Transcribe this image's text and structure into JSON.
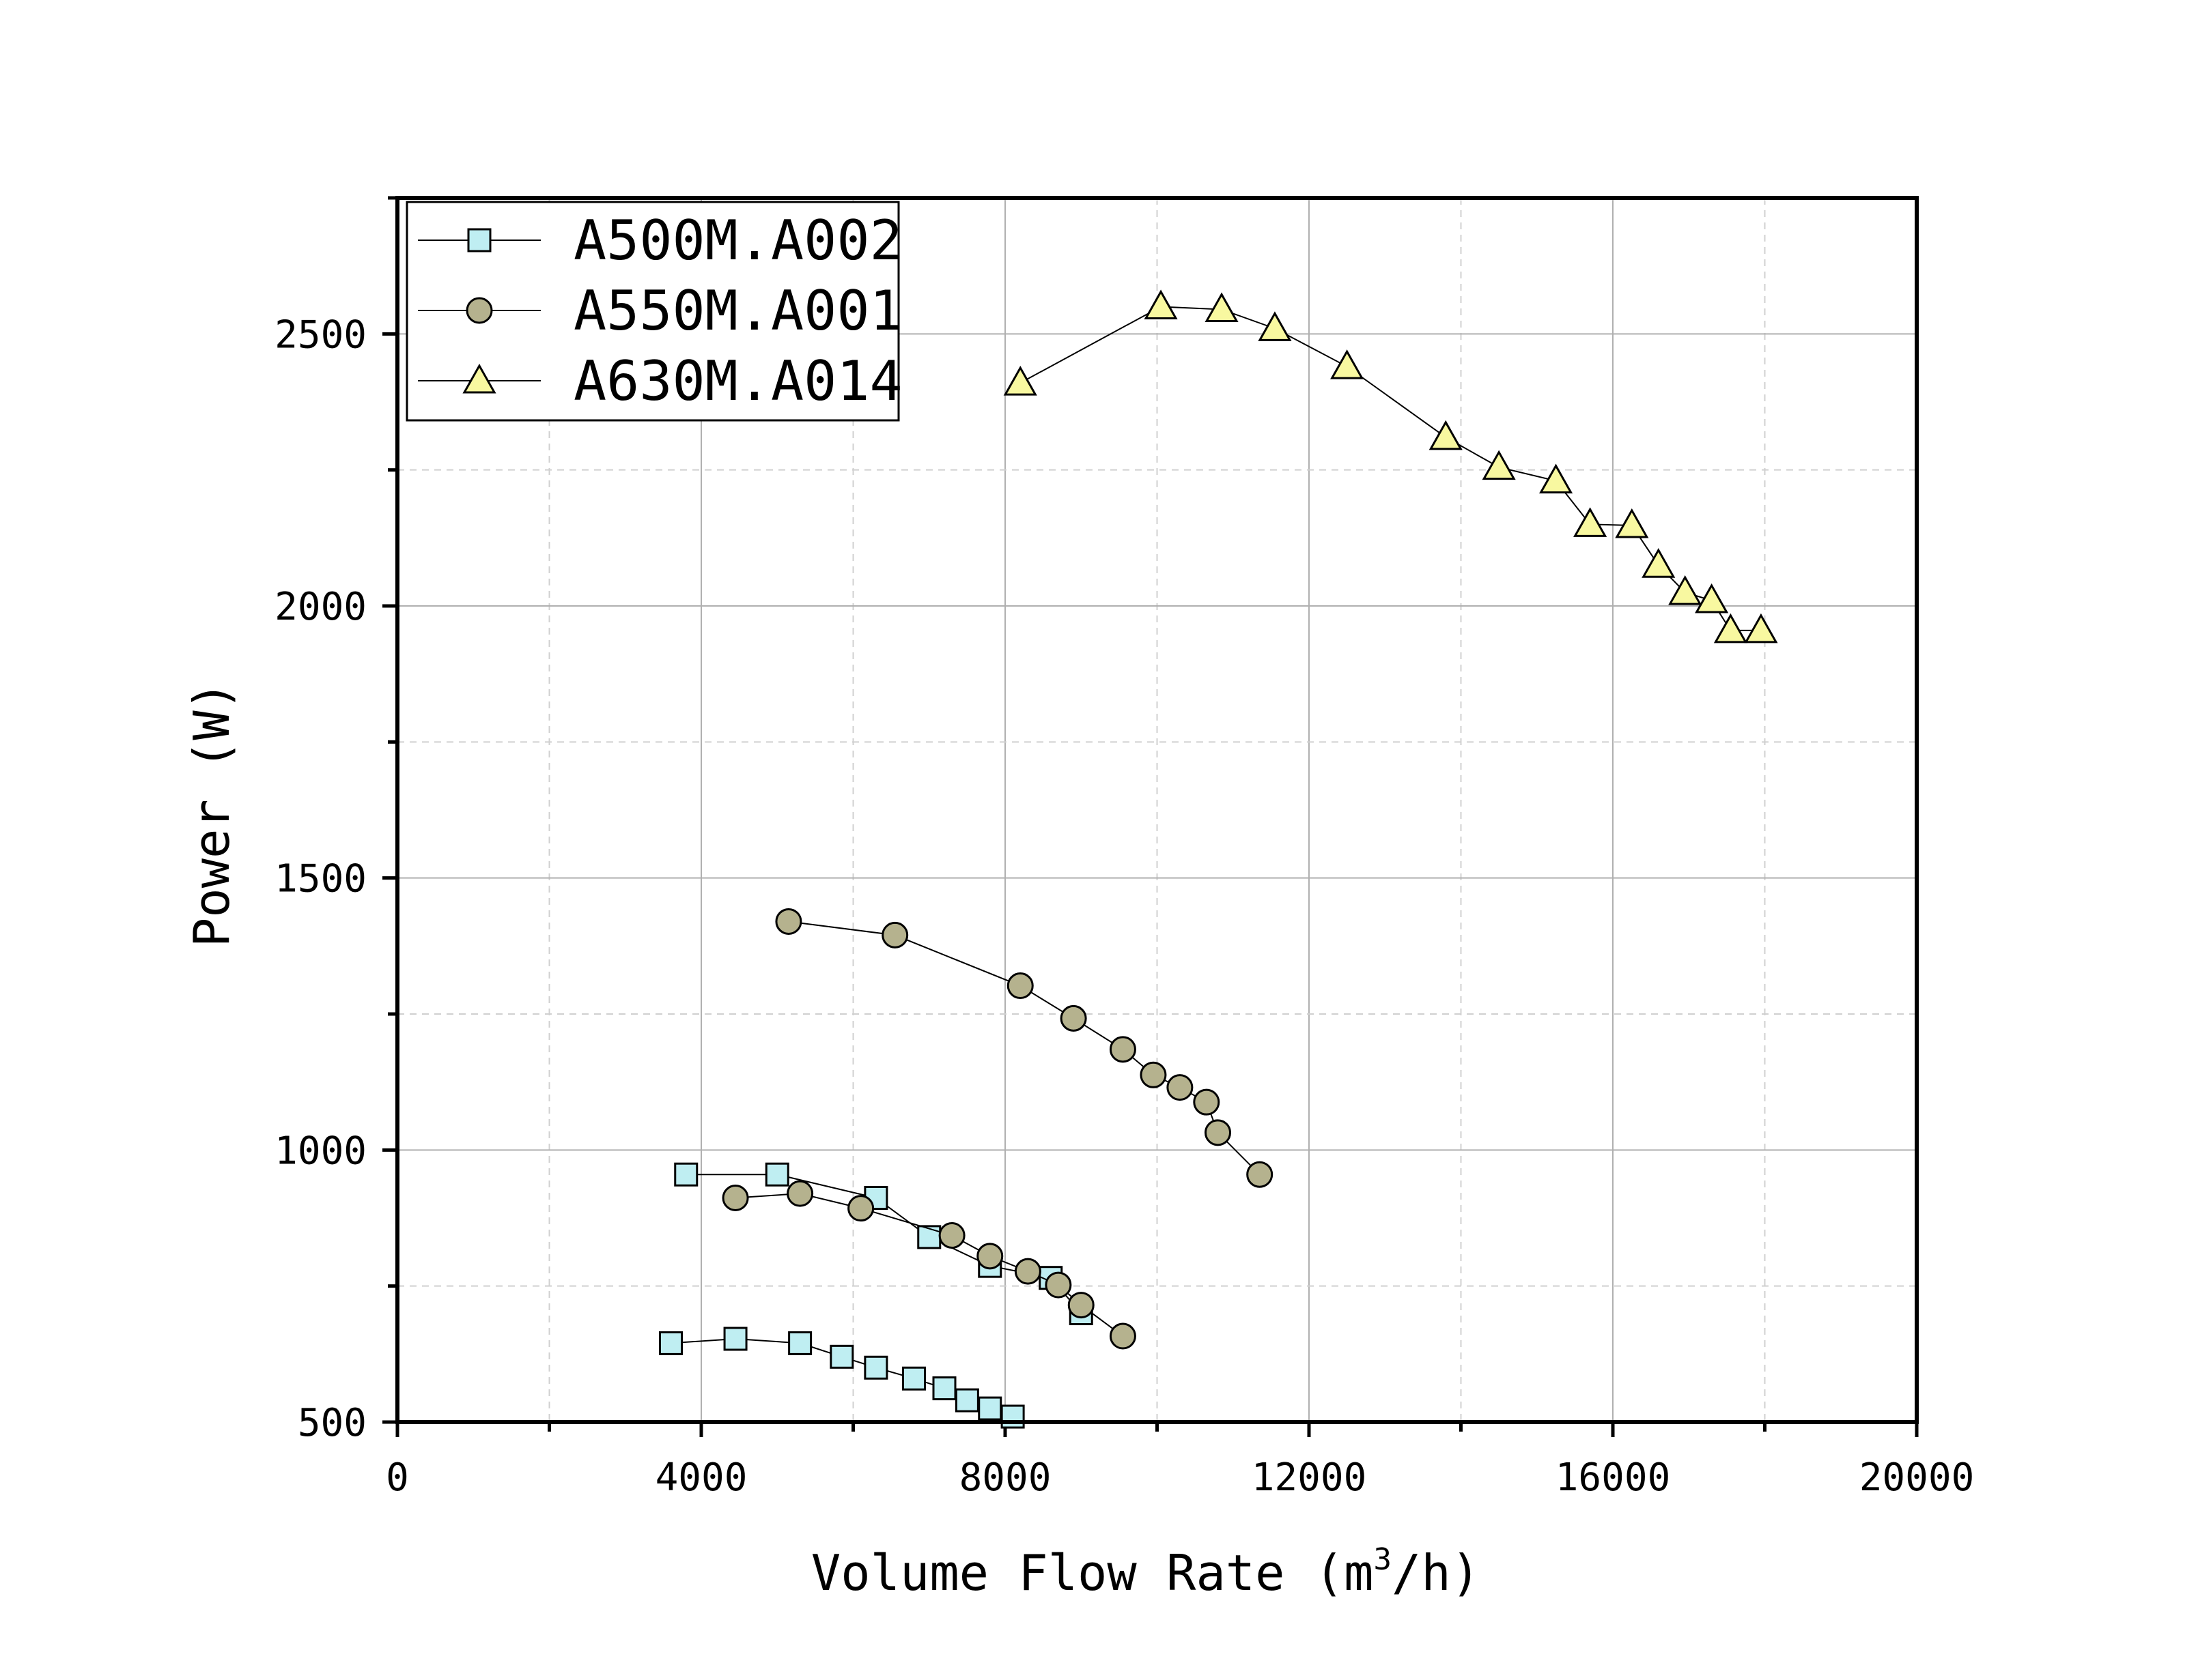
{
  "chart_data": {
    "type": "line",
    "title": "",
    "xlabel": "Volume Flow Rate (m³/h)",
    "xlabel_main": "Volume Flow Rate (m",
    "xlabel_sup": "3",
    "xlabel_tail": "/h)",
    "ylabel": "Power (W)",
    "xlim": [
      0,
      20000
    ],
    "ylim": [
      500,
      2750
    ],
    "xticks": [
      0,
      4000,
      8000,
      12000,
      16000,
      20000
    ],
    "xtick_labels": [
      "0",
      "4000",
      "8000",
      "12000",
      "16000",
      "20000"
    ],
    "yticks": [
      500,
      1000,
      1500,
      2000,
      2500
    ],
    "ytick_labels": [
      "500",
      "1000",
      "1500",
      "2000",
      "2500"
    ],
    "grid": true,
    "legend_position": "top-left",
    "series": [
      {
        "name": "A500M.A002",
        "marker": "square",
        "color": "#bfeef2",
        "groups": [
          {
            "x": [
              3800,
              5000,
              6300,
              7000,
              7800,
              8600,
              9000
            ],
            "y": [
              955,
              955,
              912,
              840,
              787,
              765,
              700
            ]
          },
          {
            "x": [
              3600,
              4450,
              5300,
              5850,
              6300,
              6800,
              7200,
              7500,
              7800,
              8100
            ],
            "y": [
              645,
              653,
              645,
              620,
              600,
              580,
              562,
              540,
              525,
              510
            ]
          }
        ]
      },
      {
        "name": "A550M.A001",
        "marker": "circle",
        "color": "#b5b28e",
        "groups": [
          {
            "x": [
              5150,
              6550,
              8200,
              8900,
              9550,
              9950,
              10300,
              10650,
              10800,
              11350
            ],
            "y": [
              1420,
              1395,
              1302,
              1242,
              1185,
              1138,
              1115,
              1088,
              1032,
              955
            ]
          },
          {
            "x": [
              4450,
              5300,
              6100,
              7300,
              7800,
              8300,
              8700,
              9000,
              9550
            ],
            "y": [
              912,
              920,
              893,
              843,
              805,
              777,
              752,
              715,
              658
            ]
          }
        ]
      },
      {
        "name": "A630M.A014",
        "marker": "triangle",
        "color": "#f8f8a0",
        "groups": [
          {
            "x": [
              8200,
              10050,
              10850,
              11550,
              12500,
              13800,
              14500,
              15250,
              15700,
              16250,
              16600,
              16950,
              17300,
              17550,
              17950
            ],
            "y": [
              2410,
              2550,
              2545,
              2510,
              2440,
              2310,
              2255,
              2230,
              2150,
              2148,
              2075,
              2025,
              2010,
              1955,
              1955
            ]
          }
        ]
      }
    ]
  }
}
